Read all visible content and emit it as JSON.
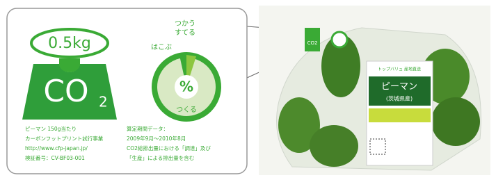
{
  "label": {
    "weight": "0.5kg",
    "co2": "CO",
    "co2_sub": "2",
    "percent": "%",
    "pie_labels": {
      "transport": "はこぶ",
      "use": "つかう",
      "dispose": "すてる",
      "produce": "つくる"
    },
    "notes_left": [
      "ピーマン 150g当たり",
      "カーボンフットプリント試行事業",
      "http://www.cfp-japan.jp/",
      "検証番号：CV-BF03-001"
    ],
    "notes_right": [
      "算定期間データ：",
      "2009年9月〜2010年8月",
      "CO2総排出量における「調達」及び",
      "「生産」による排出量を含む"
    ]
  },
  "product": {
    "tag": "CO2",
    "brand": "トップバリュ 産地直送",
    "name": "ピーマン",
    "origin": "(茨城県産)"
  }
}
